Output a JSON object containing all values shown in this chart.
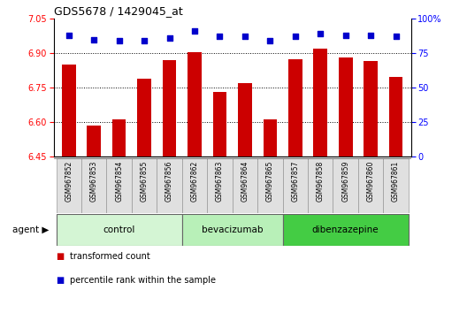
{
  "title": "GDS5678 / 1429045_at",
  "samples": [
    "GSM967852",
    "GSM967853",
    "GSM967854",
    "GSM967855",
    "GSM967856",
    "GSM967862",
    "GSM967863",
    "GSM967864",
    "GSM967865",
    "GSM967857",
    "GSM967858",
    "GSM967859",
    "GSM967860",
    "GSM967861"
  ],
  "bar_values": [
    6.85,
    6.585,
    6.61,
    6.79,
    6.87,
    6.905,
    6.73,
    6.77,
    6.61,
    6.875,
    6.92,
    6.88,
    6.865,
    6.795
  ],
  "percentile_values": [
    88,
    85,
    84,
    84,
    86,
    91,
    87,
    87,
    84,
    87,
    89,
    88,
    88,
    87
  ],
  "groups": [
    {
      "label": "control",
      "start": 0,
      "end": 5,
      "color": "#d4f5d4"
    },
    {
      "label": "bevacizumab",
      "start": 5,
      "end": 9,
      "color": "#b8f0b8"
    },
    {
      "label": "dibenzazepine",
      "start": 9,
      "end": 14,
      "color": "#44cc44"
    }
  ],
  "group_color_list": [
    "#d4f5d4",
    "#b8f0b8",
    "#44cc44"
  ],
  "ylim_left": [
    6.45,
    7.05
  ],
  "ylim_right": [
    0,
    100
  ],
  "yticks_left": [
    6.45,
    6.6,
    6.75,
    6.9,
    7.05
  ],
  "yticks_right": [
    0,
    25,
    50,
    75,
    100
  ],
  "bar_color": "#cc0000",
  "dot_color": "#0000cc",
  "grid_lines": [
    6.6,
    6.75,
    6.9
  ],
  "legend_items": [
    {
      "color": "#cc0000",
      "label": "transformed count"
    },
    {
      "color": "#0000cc",
      "label": "percentile rank within the sample"
    }
  ]
}
